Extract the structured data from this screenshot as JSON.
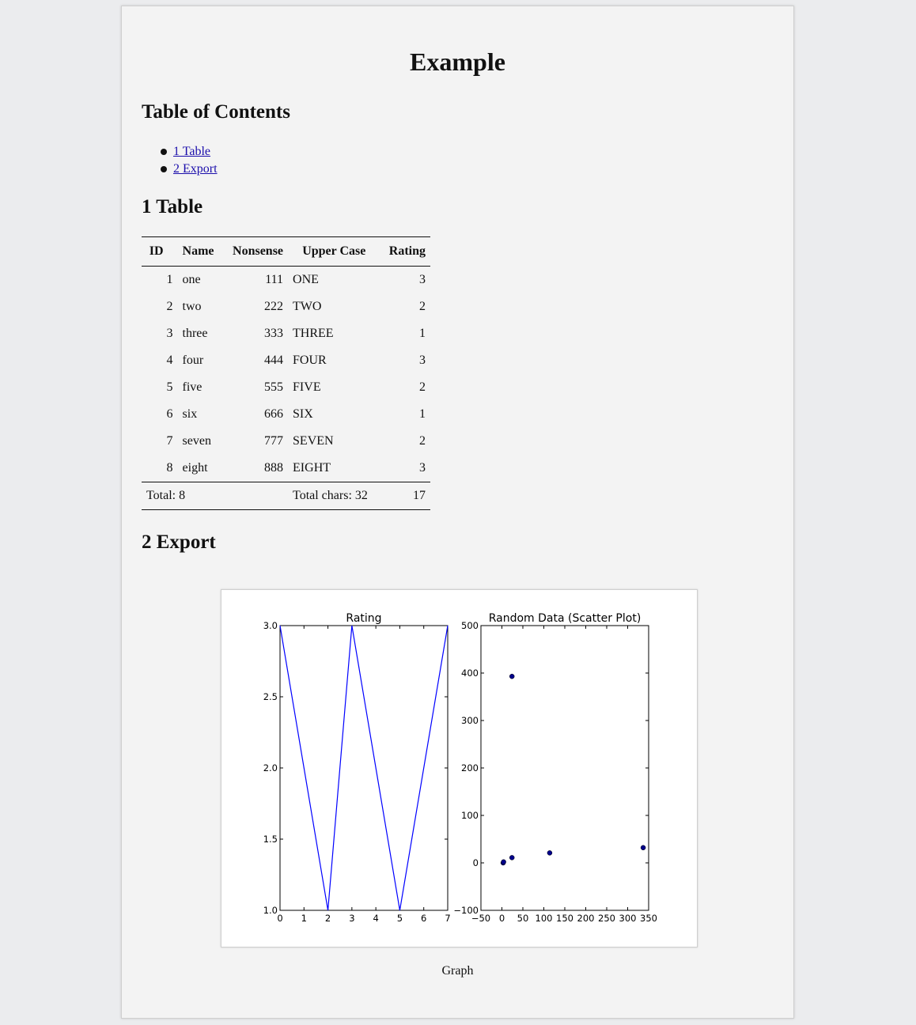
{
  "document": {
    "title": "Example",
    "toc_heading": "Table of Contents",
    "toc": [
      {
        "label": "1 Table"
      },
      {
        "label": "2 Export"
      }
    ],
    "section1_heading": "1 Table",
    "section2_heading": "2 Export",
    "figure_caption": "Graph"
  },
  "table": {
    "columns": [
      "ID",
      "Name",
      "Nonsense",
      "Upper Case",
      "Rating"
    ],
    "rows": [
      [
        "1",
        "one",
        "111",
        "ONE",
        "3"
      ],
      [
        "2",
        "two",
        "222",
        "TWO",
        "2"
      ],
      [
        "3",
        "three",
        "333",
        "THREE",
        "1"
      ],
      [
        "4",
        "four",
        "444",
        "FOUR",
        "3"
      ],
      [
        "5",
        "five",
        "555",
        "FIVE",
        "2"
      ],
      [
        "6",
        "six",
        "666",
        "SIX",
        "1"
      ],
      [
        "7",
        "seven",
        "777",
        "SEVEN",
        "2"
      ],
      [
        "8",
        "eight",
        "888",
        "EIGHT",
        "3"
      ]
    ],
    "footer": {
      "total": "Total: 8",
      "chars": "Total chars: 32",
      "rating_sum": "17"
    }
  },
  "chart_data": [
    {
      "type": "line",
      "title": "Rating",
      "xlabel": "",
      "ylabel": "",
      "x": [
        0,
        1,
        2,
        3,
        4,
        5,
        6,
        7
      ],
      "series": [
        {
          "values": [
            3,
            2,
            1,
            3,
            2,
            1,
            2,
            3
          ]
        }
      ],
      "xlim": [
        0,
        7
      ],
      "ylim": [
        1.0,
        3.0
      ],
      "xticks": [
        "0",
        "1",
        "2",
        "3",
        "4",
        "5",
        "6",
        "7"
      ],
      "yticks": [
        "1.0",
        "1.5",
        "2.0",
        "2.5",
        "3.0"
      ],
      "color": "#0000ff",
      "grid": false
    },
    {
      "type": "scatter",
      "title": "Random Data (Scatter Plot)",
      "xlabel": "",
      "ylabel": "",
      "points": [
        {
          "x": 3,
          "y": 0
        },
        {
          "x": 4,
          "y": 2
        },
        {
          "x": 24,
          "y": 393
        },
        {
          "x": 24,
          "y": 11
        },
        {
          "x": 114,
          "y": 21
        },
        {
          "x": 337,
          "y": 32
        }
      ],
      "xlim": [
        -50,
        350
      ],
      "ylim": [
        -100,
        500
      ],
      "xticks": [
        "−50",
        "0",
        "50",
        "100",
        "150",
        "200",
        "250",
        "300",
        "350"
      ],
      "yticks": [
        "−100",
        "0",
        "100",
        "200",
        "300",
        "400",
        "500"
      ],
      "color": "#00008b",
      "grid": false
    }
  ]
}
